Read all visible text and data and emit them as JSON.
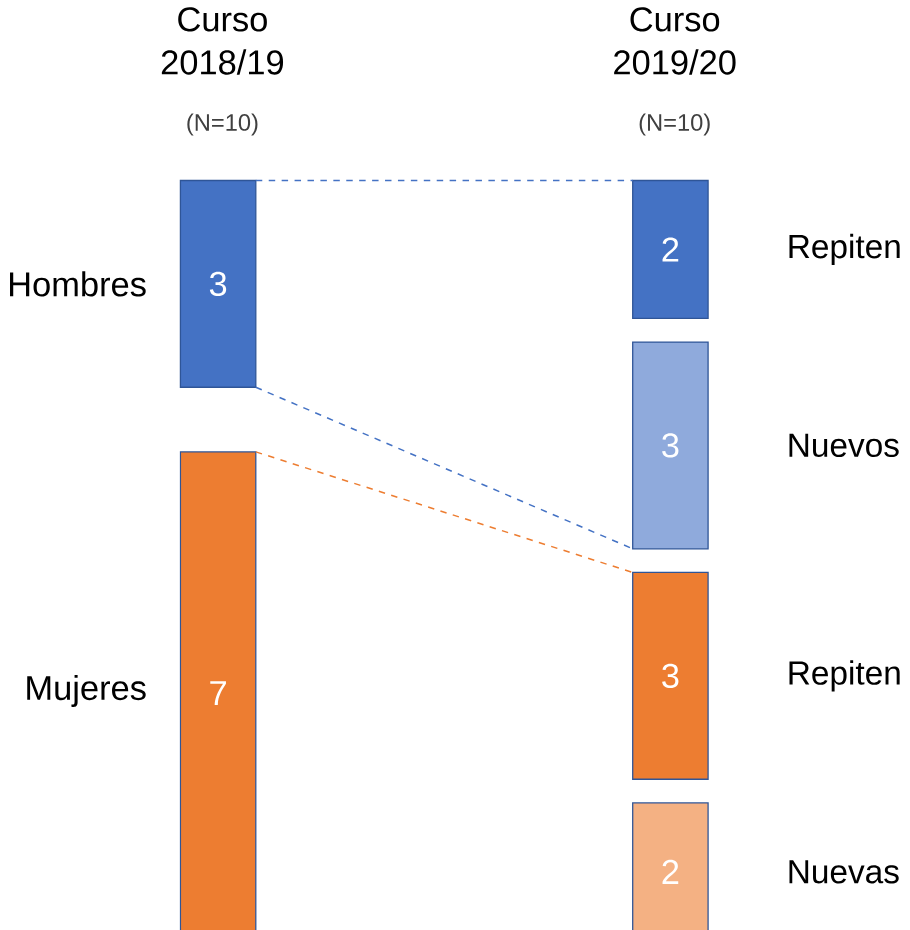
{
  "chart_data": {
    "type": "other",
    "categories": [
      "Curso 2018/19",
      "Curso 2019/20"
    ],
    "annotations": [
      "(N=10)",
      "(N=10)"
    ],
    "data_labels": true,
    "series": [
      {
        "name": "Hombres",
        "color": "#4472c4",
        "values": [
          3,
          null
        ]
      },
      {
        "name": "Mujeres",
        "color": "#ed7d31",
        "values": [
          7,
          null
        ]
      },
      {
        "name": "Repiten",
        "color": "#4472c4",
        "values": [
          null,
          2
        ]
      },
      {
        "name": "Nuevos",
        "color": "#8faadc",
        "values": [
          null,
          3
        ]
      },
      {
        "name": "Repiten",
        "color": "#ed7d31",
        "values": [
          null,
          3
        ]
      },
      {
        "name": "Nuevas",
        "color": "#f4b183",
        "values": [
          null,
          2
        ]
      }
    ]
  }
}
